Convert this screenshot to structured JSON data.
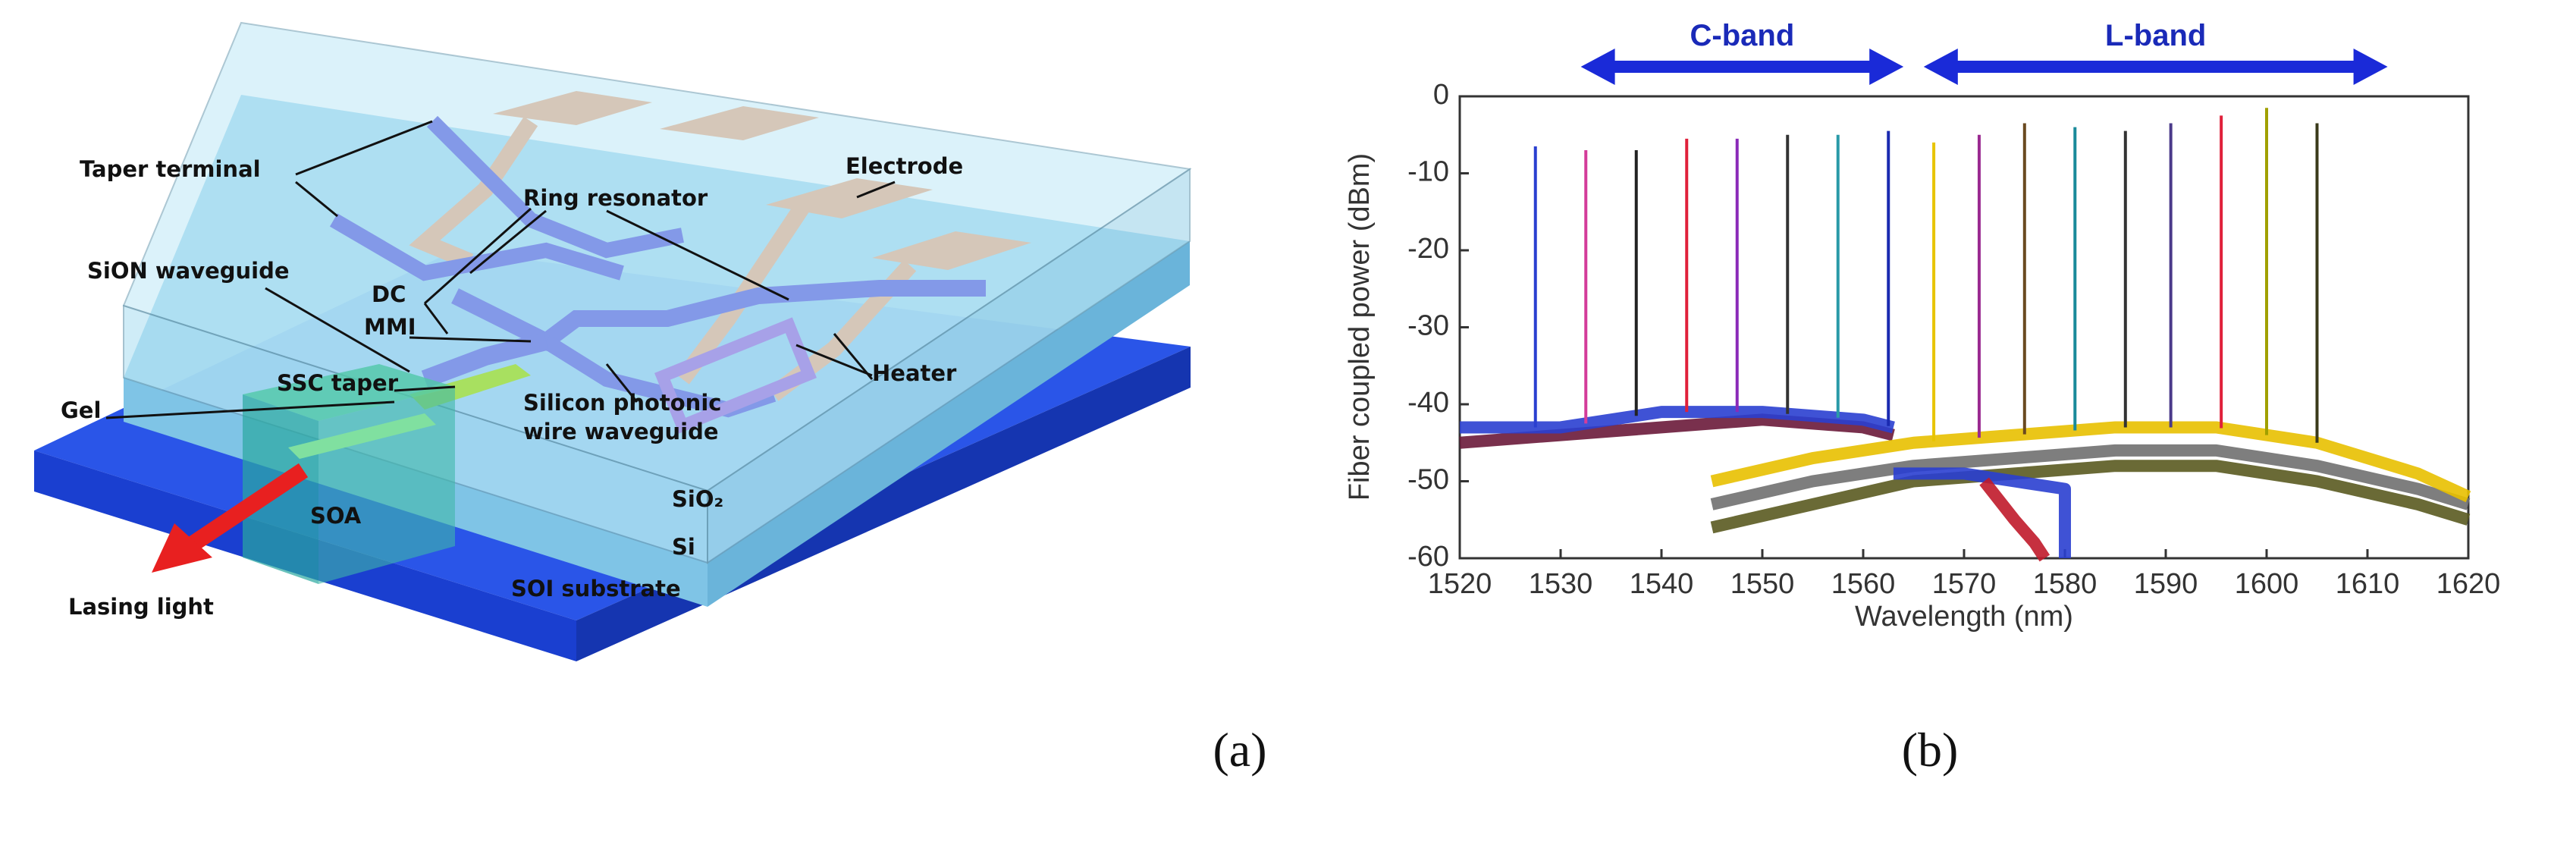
{
  "diagram": {
    "labels": [
      "Taper terminal",
      "DC",
      "Ring resonator",
      "Electrode",
      "SiON waveguide",
      "MMI",
      "SSC taper",
      "Gel",
      "Silicon photonic",
      "wire waveguide",
      "Heater",
      "SiO₂",
      "SOA",
      "Si",
      "SOI substrate",
      "Lasing light"
    ]
  },
  "chart_data": {
    "type": "line",
    "xlabel": "Wavelength (nm)",
    "ylabel": "Fiber coupled power (dBm)",
    "xlim": [
      1520,
      1620
    ],
    "ylim": [
      -60,
      0
    ],
    "xticks": [
      1520,
      1530,
      1540,
      1550,
      1560,
      1570,
      1580,
      1590,
      1600,
      1610,
      1620
    ],
    "yticks": [
      -60,
      -50,
      -40,
      -30,
      -20,
      -10,
      0
    ],
    "annotations": [
      {
        "text": "C-band",
        "x": [
          1532,
          1564
        ]
      },
      {
        "text": "L-band",
        "x": [
          1566,
          1612
        ]
      }
    ],
    "series": [
      {
        "color": "#6a1a3a",
        "x": [
          1520,
          1530,
          1540,
          1550,
          1560,
          1563
        ],
        "values": [
          -45,
          -44,
          -43,
          -42,
          -43,
          -44
        ]
      },
      {
        "color": "#2a3fd0",
        "x": [
          1520,
          1530,
          1540,
          1550,
          1560,
          1563
        ],
        "values": [
          -43,
          -43,
          -41,
          -41,
          -42,
          -43
        ]
      },
      {
        "color": "#5a5a20",
        "x": [
          1545,
          1555,
          1565,
          1575,
          1585,
          1595,
          1605,
          1615,
          1620
        ],
        "values": [
          -56,
          -53,
          -50,
          -49,
          -48,
          -48,
          -50,
          -53,
          -55
        ]
      },
      {
        "color": "#707070",
        "x": [
          1545,
          1555,
          1565,
          1575,
          1585,
          1595,
          1605,
          1615,
          1620
        ],
        "values": [
          -53,
          -50,
          -48,
          -47,
          -46,
          -46,
          -48,
          -51,
          -53
        ]
      },
      {
        "color": "#e8c000",
        "x": [
          1545,
          1555,
          1565,
          1575,
          1585,
          1595,
          1605,
          1615,
          1620
        ],
        "values": [
          -50,
          -47,
          -45,
          -44,
          -43,
          -43,
          -45,
          -49,
          -52
        ]
      },
      {
        "color": "#2a3fd0",
        "x": [
          1563,
          1570,
          1575,
          1580,
          1580
        ],
        "values": [
          -49,
          -49,
          -50,
          -51,
          -60
        ]
      },
      {
        "color": "#c01a2a",
        "x": [
          1572,
          1575,
          1577,
          1578
        ],
        "values": [
          -50,
          -55,
          -58,
          -60
        ]
      }
    ],
    "peaks": {
      "x": [
        1527.5,
        1532.5,
        1537.5,
        1542.5,
        1547.5,
        1552.5,
        1557.5,
        1562.5,
        1567,
        1571.5,
        1576,
        1581,
        1586,
        1590.5,
        1595.5,
        1600,
        1605
      ],
      "values": [
        -6.5,
        -7,
        -7,
        -5.5,
        -5.5,
        -5,
        -5,
        -4.5,
        -6,
        -5,
        -3.5,
        -4,
        -4.5,
        -3.5,
        -2.5,
        -1.5,
        -3.5
      ],
      "colors": [
        "#2a3fd0",
        "#d43c9a",
        "#222222",
        "#e0203a",
        "#8a2ab8",
        "#333333",
        "#2a9aa8",
        "#1a2ab0",
        "#e8c400",
        "#9a2a90",
        "#6a4a20",
        "#1a8a9a",
        "#333333",
        "#4a3a8a",
        "#e0203a",
        "#a0a000",
        "#3a3a1a"
      ]
    }
  },
  "captions": [
    "(a)",
    "(b)"
  ]
}
